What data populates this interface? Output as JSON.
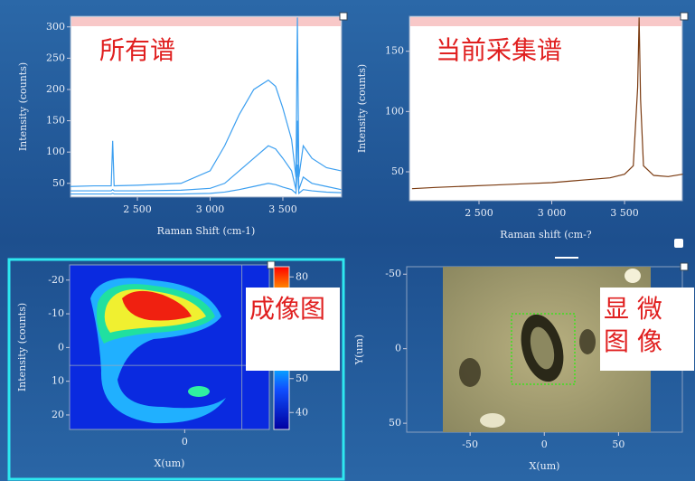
{
  "panels": [
    {
      "title": "所有谱",
      "x_label": "Raman Shift (cm-1)",
      "y_label": "Intensity (counts)",
      "xlim": [
        2040,
        3904
      ],
      "ylim": [
        28,
        317
      ],
      "xticks": [
        {
          "value": 2500,
          "label": "2 500"
        },
        {
          "value": 3000,
          "label": "3 000"
        },
        {
          "value": 3500,
          "label": "3 500"
        }
      ],
      "yticks": [
        50,
        100,
        150,
        200,
        250,
        300
      ],
      "series": [
        {
          "color": "#3c9ff0",
          "x": [
            2040,
            2200,
            2320,
            2330,
            2340,
            2500,
            2800,
            3000,
            3100,
            3200,
            3300,
            3400,
            3450,
            3500,
            3560,
            3590,
            3600,
            3610,
            3640,
            3700,
            3800,
            3900
          ],
          "values": [
            45,
            46,
            46,
            118,
            46,
            47,
            50,
            70,
            110,
            160,
            200,
            215,
            205,
            170,
            120,
            60,
            315,
            60,
            110,
            90,
            75,
            70
          ]
        },
        {
          "color": "#3c9ff0",
          "x": [
            2040,
            2200,
            2320,
            2330,
            2340,
            2500,
            2800,
            3000,
            3100,
            3200,
            3300,
            3400,
            3450,
            3500,
            3560,
            3590,
            3600,
            3610,
            3640,
            3700,
            3800,
            3900
          ],
          "values": [
            38,
            38,
            38,
            40,
            38,
            38,
            39,
            42,
            50,
            70,
            90,
            110,
            105,
            90,
            70,
            40,
            150,
            40,
            60,
            50,
            45,
            40
          ]
        },
        {
          "color": "#3c9ff0",
          "x": [
            2040,
            2200,
            2320,
            2330,
            2340,
            2500,
            2800,
            3000,
            3100,
            3200,
            3300,
            3400,
            3450,
            3500,
            3560,
            3590,
            3600,
            3610,
            3640,
            3700,
            3800,
            3900
          ],
          "values": [
            33,
            33,
            33,
            34,
            33,
            33,
            33,
            34,
            36,
            40,
            45,
            50,
            48,
            44,
            40,
            34,
            80,
            34,
            40,
            38,
            36,
            35
          ]
        }
      ]
    },
    {
      "title": "当前采集谱",
      "x_label": "Raman shift (cm-?",
      "y_label": "Intensity (counts)",
      "xlim": [
        2022,
        3897
      ],
      "ylim": [
        26,
        179
      ],
      "xticks": [
        {
          "value": 2500,
          "label": "2 500"
        },
        {
          "value": 3000,
          "label": "3 000"
        },
        {
          "value": 3500,
          "label": "3 500"
        }
      ],
      "yticks": [
        50,
        100,
        150
      ],
      "series": [
        {
          "color": "#7a3a10",
          "x": [
            2040,
            2200,
            2400,
            2600,
            2800,
            3000,
            3200,
            3400,
            3500,
            3560,
            3590,
            3600,
            3610,
            3630,
            3700,
            3800,
            3900
          ],
          "values": [
            36,
            37,
            38,
            39,
            40,
            41,
            43,
            45,
            48,
            55,
            120,
            178,
            110,
            55,
            47,
            46,
            48
          ]
        }
      ]
    },
    {
      "title": "成像图",
      "x_label": "X(um)",
      "y_label": "Intensity (counts)",
      "y_inverted": true,
      "xlim": [
        -34,
        25
      ],
      "ylim": [
        -24.5,
        24.3
      ],
      "xticks": [
        0
      ],
      "yticks": [
        -20,
        -10,
        0,
        10,
        20
      ],
      "crosshair": {
        "x": 16.9,
        "y": 5.3
      },
      "colorbar": {
        "lim": [
          35,
          83
        ],
        "ticks": [
          80,
          50,
          40
        ]
      }
    },
    {
      "title": "显 微 图 像",
      "x_label": "X(um)",
      "y_label": "Y(um)",
      "y_inverted": true,
      "xlim": [
        -92.7,
        93
      ],
      "ylim": [
        -55,
        56
      ],
      "xticks": [
        -50,
        0,
        50
      ],
      "yticks": [
        -50,
        0,
        50
      ]
    }
  ]
}
